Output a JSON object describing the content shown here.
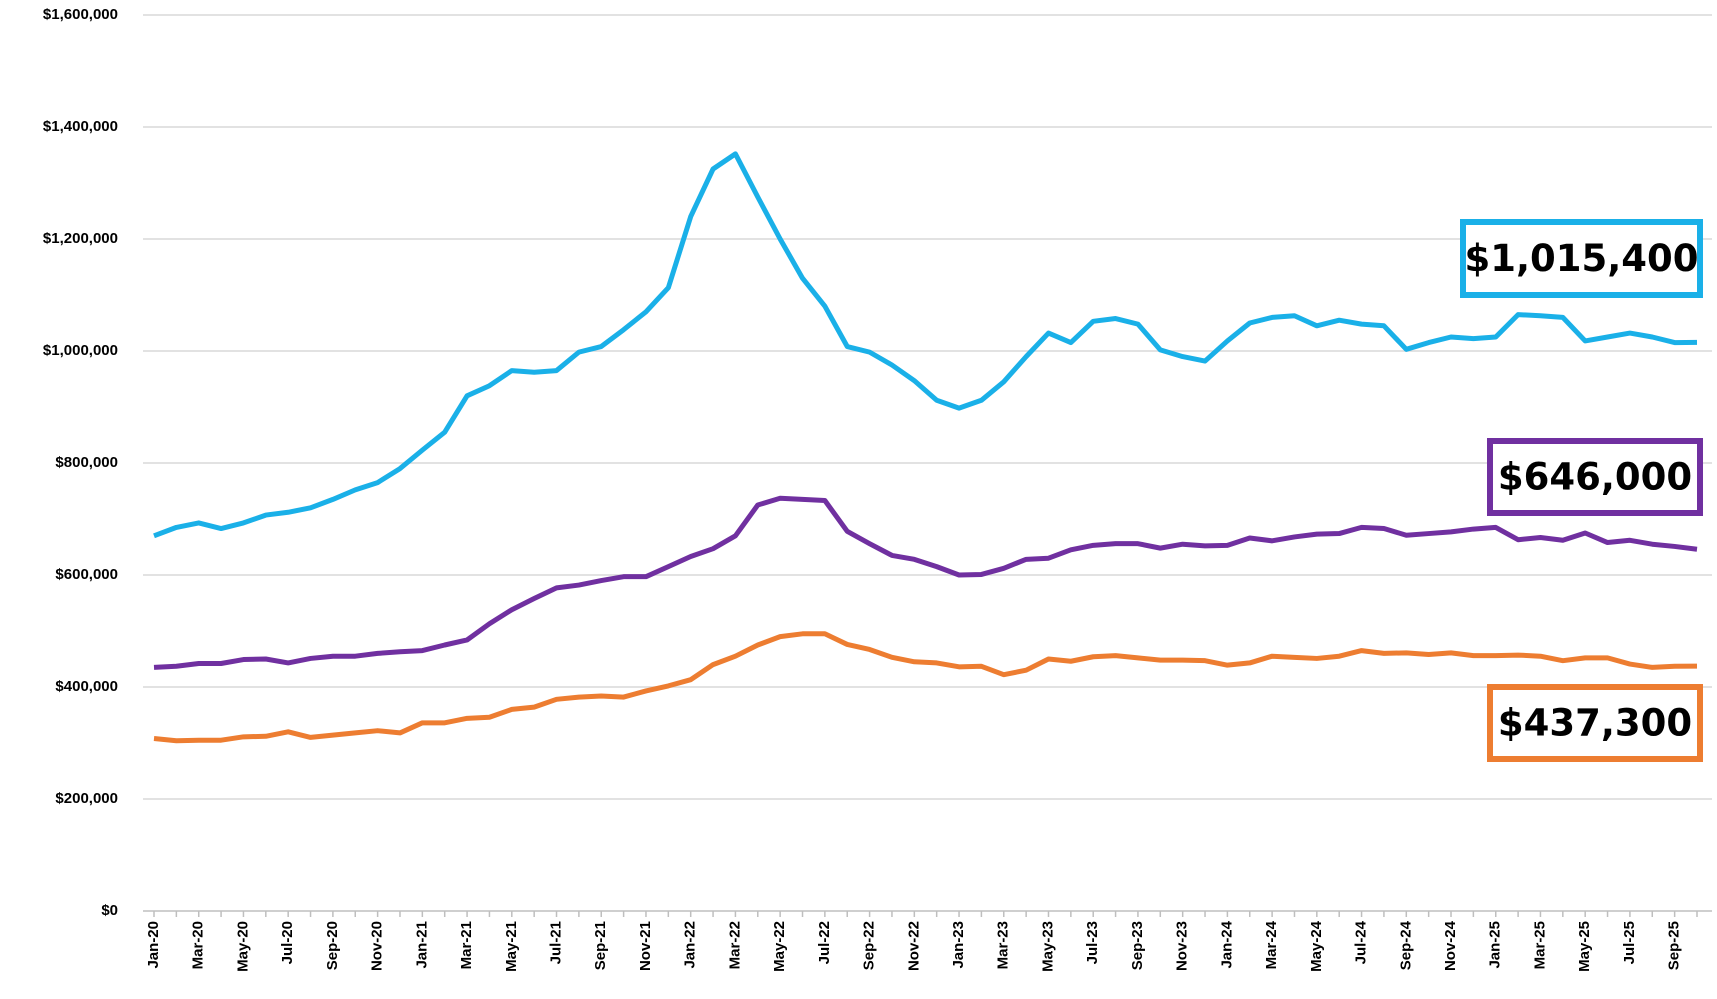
{
  "chart_data": {
    "type": "line",
    "categories": [
      "Jan-20",
      null,
      "Mar-20",
      null,
      "May-20",
      null,
      "Jul-20",
      null,
      "Sep-20",
      null,
      "Nov-20",
      null,
      "Jan-21",
      null,
      "Mar-21",
      null,
      "May-21",
      null,
      "Jul-21",
      null,
      "Sep-21",
      null,
      "Nov-21",
      null,
      "Jan-22",
      null,
      "Mar-22",
      null,
      "May-22",
      null,
      "Jul-22",
      null,
      "Sep-22",
      null,
      "Nov-22",
      null,
      "Jan-23",
      null,
      "Mar-23",
      null,
      "May-23",
      null,
      "Jul-23",
      null,
      "Sep-23",
      null,
      "Nov-23",
      null,
      "Jan-24",
      null,
      "Mar-24",
      null,
      "May-24",
      null,
      "Jul-24",
      null,
      "Sep-24",
      null,
      "Nov-24",
      null,
      "Jan-25",
      null,
      "Mar-25",
      null,
      "May-25",
      null,
      "Jul-25",
      null,
      "Sep-25",
      null
    ],
    "series": [
      {
        "color": "#1ab0e8",
        "end_label": "$1,015,400",
        "values": [
          670000,
          685000,
          693000,
          683000,
          693000,
          707000,
          712000,
          720000,
          735000,
          752000,
          765000,
          790000,
          823000,
          855000,
          920000,
          938000,
          965000,
          962000,
          965000,
          998000,
          1008000,
          1038000,
          1070000,
          1113000,
          1240000,
          1325000,
          1352000,
          1275000,
          1200000,
          1130000,
          1080000,
          1008000,
          998000,
          975000,
          947000,
          912000,
          898000,
          912000,
          945000,
          990000,
          1032000,
          1015000,
          1053000,
          1058000,
          1048000,
          1002000,
          990000,
          982000,
          1018000,
          1050000,
          1060000,
          1063000,
          1045000,
          1055000,
          1048000,
          1045000,
          1003000,
          1015000,
          1025000,
          1022000,
          1025000,
          1065000,
          1063000,
          1060000,
          1018000,
          1025000,
          1032000,
          1025000,
          1015000,
          1015400
        ]
      },
      {
        "color": "#7030a0",
        "end_label": "$646,000",
        "values": [
          435000,
          437000,
          442000,
          442000,
          449000,
          450000,
          443000,
          451000,
          455000,
          455000,
          460000,
          463000,
          465000,
          475000,
          484000,
          513000,
          538000,
          558000,
          577000,
          582000,
          590000,
          597000,
          597000,
          615000,
          633000,
          647000,
          670000,
          725000,
          737000,
          735000,
          733000,
          678000,
          656000,
          635000,
          628000,
          615000,
          600000,
          601000,
          612000,
          628000,
          630000,
          645000,
          653000,
          656000,
          656000,
          648000,
          655000,
          652000,
          653000,
          666000,
          661000,
          668000,
          673000,
          674000,
          685000,
          683000,
          671000,
          674000,
          677000,
          682000,
          685000,
          663000,
          667000,
          662000,
          675000,
          658000,
          662000,
          655000,
          651000,
          646000
        ]
      },
      {
        "color": "#ed7d31",
        "end_label": "$437,300",
        "values": [
          308000,
          304000,
          305000,
          305000,
          311000,
          312000,
          320000,
          310000,
          314000,
          318000,
          322000,
          318000,
          336000,
          336000,
          344000,
          346000,
          360000,
          364000,
          378000,
          382000,
          384000,
          382000,
          393000,
          402000,
          413000,
          440000,
          455000,
          475000,
          490000,
          495000,
          495000,
          476000,
          467000,
          453000,
          445000,
          443000,
          436000,
          437000,
          422000,
          430000,
          450000,
          446000,
          454000,
          456000,
          452000,
          448000,
          448000,
          447000,
          439000,
          443000,
          455000,
          453000,
          451000,
          455000,
          465000,
          460000,
          461000,
          458000,
          461000,
          456000,
          456000,
          457000,
          455000,
          447000,
          452000,
          452000,
          441000,
          435000,
          437000,
          437300
        ]
      }
    ],
    "ylim": [
      0,
      1600000
    ],
    "yticks": [
      {
        "value": 0,
        "label": "$0"
      },
      {
        "value": 200000,
        "label": "$200,000"
      },
      {
        "value": 400000,
        "label": "$400,000"
      },
      {
        "value": 600000,
        "label": "$600,000"
      },
      {
        "value": 800000,
        "label": "$800,000"
      },
      {
        "value": 1000000,
        "label": "$1,000,000"
      },
      {
        "value": 1200000,
        "label": "$1,200,000"
      },
      {
        "value": 1400000,
        "label": "$1,400,000"
      },
      {
        "value": 1600000,
        "label": "$1,600,000"
      }
    ],
    "grid": true
  }
}
